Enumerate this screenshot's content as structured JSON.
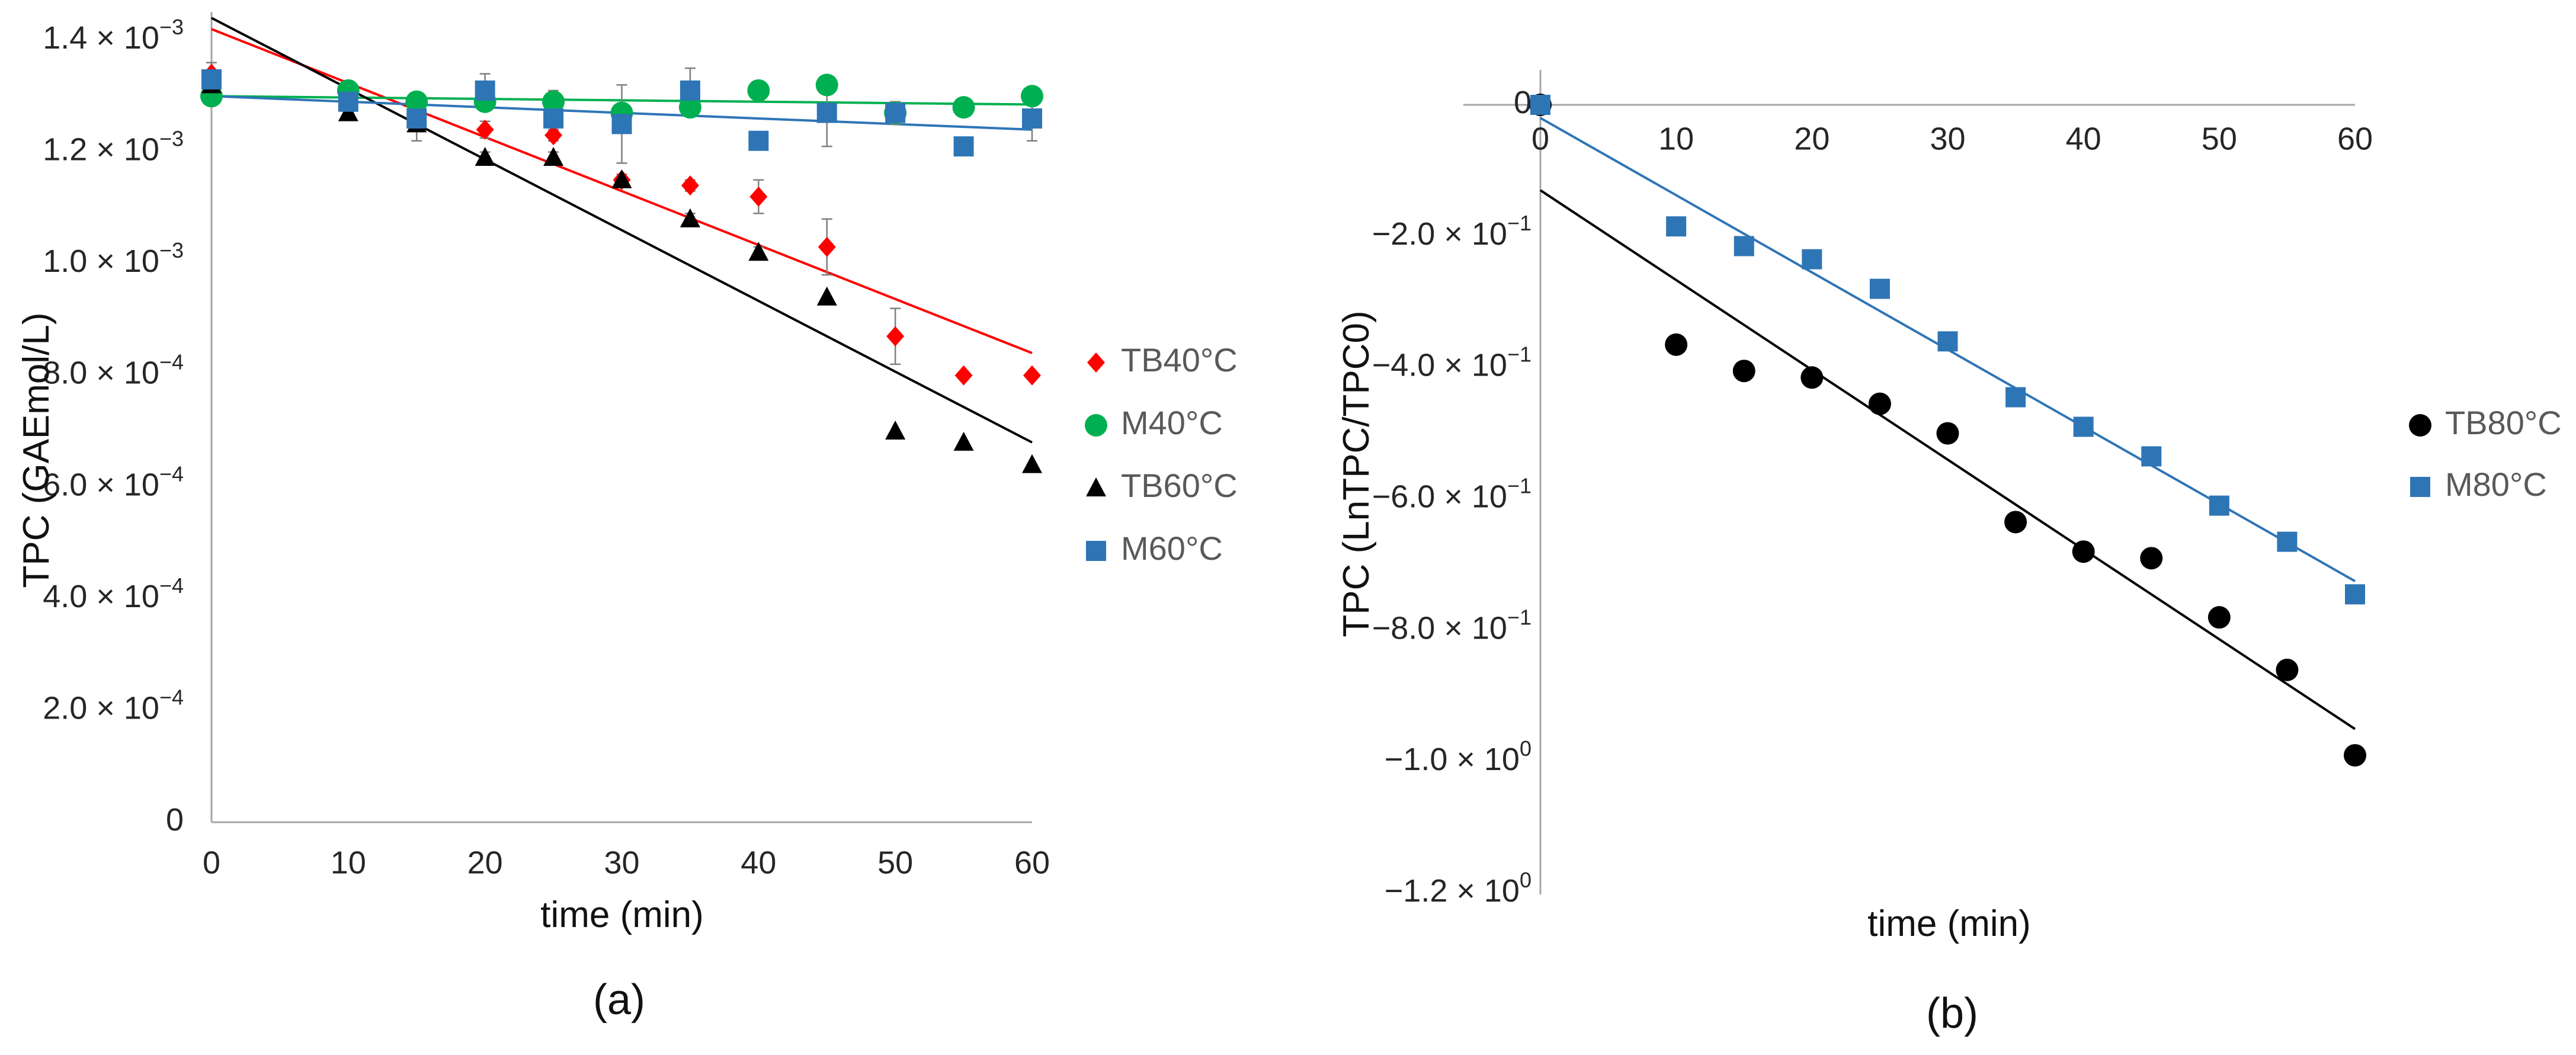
{
  "chart_data": [
    {
      "id": "a",
      "type": "scatter",
      "caption": "(a)",
      "xlabel": "time (min)",
      "ylabel": "TPC (GAEmol/L)",
      "xlim": [
        0,
        60
      ],
      "ylim": [
        0,
        0.0014
      ],
      "x_ticks": [
        "0",
        "10",
        "20",
        "30",
        "40",
        "50",
        "60"
      ],
      "y_ticks": [
        {
          "value": 0,
          "mantissa": "0",
          "exp": ""
        },
        {
          "value": 0.0002,
          "mantissa": "2.0 × 10",
          "exp": "−4"
        },
        {
          "value": 0.0004,
          "mantissa": "4.0 × 10",
          "exp": "−4"
        },
        {
          "value": 0.0006,
          "mantissa": "6.0 × 10",
          "exp": "−4"
        },
        {
          "value": 0.0008,
          "mantissa": "8.0 × 10",
          "exp": "−4"
        },
        {
          "value": 0.001,
          "mantissa": "1.0 × 10",
          "exp": "−3"
        },
        {
          "value": 0.0012,
          "mantissa": "1.2 × 10",
          "exp": "−3"
        },
        {
          "value": 0.0014,
          "mantissa": "1.4 × 10",
          "exp": "−3"
        }
      ],
      "series": [
        {
          "name": "TB40°C",
          "marker": "diamond",
          "color": "#ff0000",
          "x": [
            0,
            10,
            15,
            20,
            25,
            30,
            35,
            40,
            45,
            50,
            55,
            60
          ],
          "y": [
            0.00134,
            0.00129,
            0.00127,
            0.00124,
            0.00123,
            0.00115,
            0.00114,
            0.00112,
            0.00103,
            0.00087,
            0.0008,
            0.0008
          ],
          "err": [
            2e-05,
            2e-05,
            2e-05,
            1.5e-05,
            1e-05,
            1e-05,
            1e-05,
            3e-05,
            5e-05,
            5e-05,
            0.0,
            0.0
          ],
          "fit": [
            [
              0,
              0.00142
            ],
            [
              60,
              0.00084
            ]
          ]
        },
        {
          "name": "M40°C",
          "marker": "circle",
          "color": "#00b050",
          "x": [
            0,
            10,
            15,
            20,
            25,
            30,
            35,
            40,
            45,
            50,
            55,
            60
          ],
          "y": [
            0.0013,
            0.00131,
            0.00129,
            0.00129,
            0.00129,
            0.00127,
            0.00128,
            0.00131,
            0.00132,
            0.00127,
            0.00128,
            0.0013
          ],
          "err": [
            1e-05,
            1.5e-05,
            1e-05,
            1e-05,
            2e-05,
            1e-05,
            1e-05,
            0.0,
            1e-05,
            1e-05,
            0.0,
            0.0
          ],
          "fit": [
            [
              0,
              0.0013
            ],
            [
              60,
              0.001285
            ]
          ]
        },
        {
          "name": "TB60°C",
          "marker": "triangle",
          "color": "#000000",
          "x": [
            0,
            10,
            15,
            20,
            25,
            30,
            35,
            40,
            45,
            50,
            55,
            60
          ],
          "y": [
            0.00132,
            0.00127,
            0.00125,
            0.00119,
            0.00119,
            0.00115,
            0.00108,
            0.00102,
            0.00094,
            0.0007,
            0.00068,
            0.00064
          ],
          "err": [
            1e-05,
            1e-05,
            1e-05,
            1e-05,
            1e-05,
            1e-05,
            1e-05,
            1e-05,
            0.0,
            0.0,
            0.0,
            0.0
          ],
          "fit": [
            [
              0,
              0.00144
            ],
            [
              60,
              0.00068
            ]
          ]
        },
        {
          "name": "M60°C",
          "marker": "square",
          "color": "#2e75b6",
          "x": [
            0,
            10,
            15,
            20,
            25,
            30,
            35,
            40,
            45,
            50,
            55,
            60
          ],
          "y": [
            0.00133,
            0.00129,
            0.00126,
            0.00131,
            0.00126,
            0.00125,
            0.00131,
            0.00122,
            0.00127,
            0.00127,
            0.00121,
            0.00126
          ],
          "err": [
            1e-05,
            1e-05,
            4e-05,
            3e-05,
            3e-05,
            7e-05,
            4e-05,
            1e-05,
            6e-05,
            2e-05,
            0.0,
            4e-05
          ],
          "fit": [
            [
              0,
              0.0013
            ],
            [
              60,
              0.00124
            ]
          ]
        }
      ]
    },
    {
      "id": "b",
      "type": "scatter",
      "caption": "(b)",
      "xlabel": "time (min)",
      "ylabel": "TPC (LnTPC/TPC0)",
      "xlim": [
        0,
        60
      ],
      "ylim": [
        -1.2,
        0.0
      ],
      "x_ticks": [
        "0",
        "10",
        "20",
        "30",
        "40",
        "50",
        "60"
      ],
      "y_ticks": [
        {
          "value": 0,
          "mantissa": "0",
          "exp": ""
        },
        {
          "value": -0.2,
          "mantissa": "−2.0 × 10",
          "exp": "−1"
        },
        {
          "value": -0.4,
          "mantissa": "−4.0 × 10",
          "exp": "−1"
        },
        {
          "value": -0.6,
          "mantissa": "−6.0 × 10",
          "exp": "−1"
        },
        {
          "value": -0.8,
          "mantissa": "−8.0 × 10",
          "exp": "−1"
        },
        {
          "value": -1.0,
          "mantissa": "−1.0 × 10",
          "exp": "0"
        },
        {
          "value": -1.2,
          "mantissa": "−1.2 × 10",
          "exp": "0"
        }
      ],
      "series": [
        {
          "name": "TB80°C",
          "marker": "circle",
          "color": "#000000",
          "x": [
            0,
            10,
            15,
            20,
            25,
            30,
            35,
            40,
            45,
            50,
            55,
            60
          ],
          "y": [
            0.0,
            -0.365,
            -0.405,
            -0.415,
            -0.455,
            -0.5,
            -0.635,
            -0.68,
            -0.69,
            -0.78,
            -0.86,
            -0.99
          ],
          "fit": [
            [
              0,
              -0.13
            ],
            [
              60,
              -0.95
            ]
          ]
        },
        {
          "name": "M80°C",
          "marker": "square",
          "color": "#2e75b6",
          "x": [
            0,
            10,
            15,
            20,
            25,
            30,
            35,
            40,
            45,
            50,
            55,
            60
          ],
          "y": [
            0.0,
            -0.185,
            -0.215,
            -0.235,
            -0.28,
            -0.36,
            -0.445,
            -0.49,
            -0.535,
            -0.61,
            -0.665,
            -0.745
          ],
          "fit": [
            [
              0,
              -0.02
            ],
            [
              60,
              -0.725
            ]
          ]
        }
      ]
    }
  ]
}
